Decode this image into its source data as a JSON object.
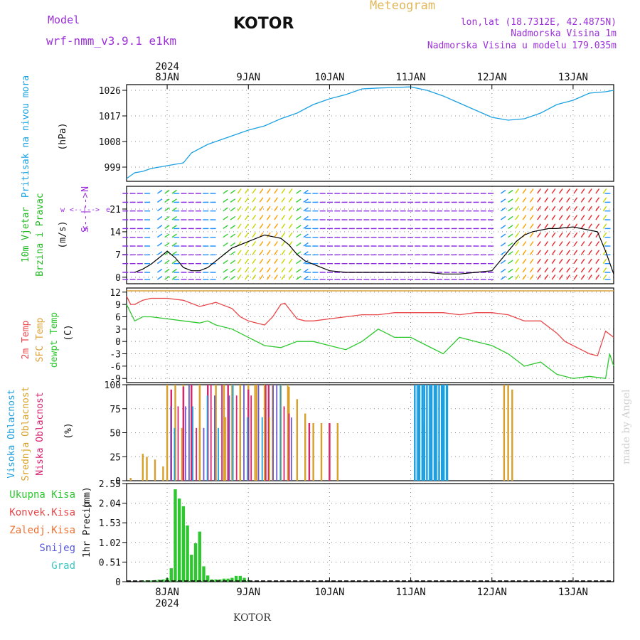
{
  "header": {
    "model_label": "Model",
    "model_name": "wrf-nmm_v3.9.1 e1km",
    "station": "KOTOR",
    "product": "Meteogram",
    "lonlat": "lon,lat (18.7312E, 42.4875N)",
    "elevation": "Nadmorska Visina 1m",
    "model_elevation": "Nadmorska Visina u modelu 179.035m",
    "footer_station": "KOTOR",
    "credit": "made by Angel"
  },
  "time_axis": {
    "year": "2024",
    "day_labels": [
      "8JAN",
      "9JAN",
      "10JAN",
      "11JAN",
      "12JAN",
      "13JAN"
    ]
  },
  "colors": {
    "pressure": "#1ba1e2",
    "temp2m": "#e8474a",
    "sfc_temp": "#dba23a",
    "dewpoint": "#2fc72f",
    "wind_label": "#22b822",
    "precip": "#2fc72f",
    "cloud_high": "#1e9fe0",
    "cloud_mid": "#d8a02a",
    "cloud_low": "#d6246e",
    "cloud_alt": "#6a5acd",
    "violet": "#9b30d9",
    "title_gold": "#e0b85c"
  },
  "chart_data": [
    {
      "type": "line",
      "panel": "pressure",
      "ylabel_parts": [
        "Pritisak na nivou mora",
        "(hPa)"
      ],
      "yticks": [
        999,
        1008,
        1017,
        1026
      ],
      "ylim": [
        994,
        1028
      ],
      "grid": true,
      "series": [
        {
          "x": [
            -0.5,
            -0.45,
            -0.4,
            -0.3,
            -0.2,
            -0.1,
            0,
            0.1,
            0.2,
            0.3,
            0.5,
            0.7,
            0.9,
            1,
            1.2,
            1.4,
            1.6,
            1.8,
            2,
            2.2,
            2.4,
            2.6,
            2.8,
            3,
            3.2,
            3.4,
            3.6,
            3.8,
            4,
            4.2,
            4.4,
            4.6,
            4.8,
            5,
            5.2,
            5.4,
            5.5
          ],
          "y": [
            995,
            996,
            997,
            997.5,
            998.5,
            999,
            999.5,
            1000,
            1000.5,
            1004,
            1007,
            1009,
            1011,
            1012,
            1013.5,
            1016,
            1018,
            1021,
            1023,
            1024.5,
            1026.5,
            1026.8,
            1027,
            1027.2,
            1026,
            1024,
            1021.5,
            1019,
            1016.5,
            1015.5,
            1016,
            1018,
            1021,
            1022.5,
            1025,
            1025.5,
            1026
          ]
        }
      ]
    },
    {
      "type": "line",
      "panel": "wind",
      "ylabel_parts": [
        "10m Vjetar",
        "Brzina i Pravac",
        "(m/s)"
      ],
      "direction_key": [
        "w",
        "<--|-->",
        "e",
        "N",
        "<--|-->",
        "S"
      ],
      "yticks": [
        0,
        7,
        14,
        21
      ],
      "ylim": [
        -2,
        28
      ],
      "grid": true,
      "series": [
        {
          "x": [
            -0.4,
            -0.3,
            -0.2,
            -0.1,
            0,
            0.1,
            0.2,
            0.3,
            0.4,
            0.5,
            0.6,
            0.8,
            1,
            1.2,
            1.3,
            1.4,
            1.5,
            1.6,
            1.7,
            1.8,
            1.9,
            2,
            2.2,
            2.4,
            2.6,
            2.8,
            3,
            3.2,
            3.4,
            3.6,
            3.8,
            4,
            4.1,
            4.2,
            4.3,
            4.4,
            4.5,
            4.6,
            4.7,
            4.8,
            5,
            5.1,
            5.2,
            5.3,
            5.4,
            5.5
          ],
          "y": [
            1.5,
            2.5,
            4,
            6,
            8,
            6,
            3,
            2,
            2,
            3,
            5,
            9,
            11,
            13,
            12.5,
            12,
            10,
            7,
            5,
            4,
            3,
            2,
            1.5,
            1.5,
            1.5,
            1.5,
            1.5,
            1.5,
            1,
            1,
            1.5,
            2,
            5,
            8,
            11,
            13,
            14,
            14.5,
            15,
            15,
            15.5,
            15,
            14.5,
            14,
            8,
            1
          ]
        }
      ]
    },
    {
      "type": "line",
      "panel": "temperature",
      "ylabel_parts": [
        "2m Temp",
        "SFC Temp",
        "dewpt Temp",
        "(C)"
      ],
      "yticks": [
        -9,
        -6,
        -3,
        0,
        3,
        6,
        9,
        12
      ],
      "ylim": [
        -10,
        13
      ],
      "grid": true,
      "series": [
        {
          "name": "2m Temp",
          "x": [
            -0.5,
            -0.45,
            -0.4,
            -0.3,
            -0.2,
            0,
            0.2,
            0.4,
            0.5,
            0.6,
            0.8,
            0.9,
            1,
            1.1,
            1.2,
            1.3,
            1.4,
            1.45,
            1.5,
            1.6,
            1.7,
            1.8,
            2,
            2.2,
            2.4,
            2.6,
            2.8,
            3,
            3.2,
            3.4,
            3.6,
            3.8,
            4,
            4.2,
            4.4,
            4.6,
            4.8,
            4.9,
            5,
            5.1,
            5.2,
            5.3,
            5.4,
            5.5
          ],
          "y": [
            11,
            9,
            9,
            10,
            10.5,
            10.5,
            10,
            8.5,
            9,
            9.5,
            8,
            6,
            5,
            4.5,
            4,
            6,
            9,
            9.3,
            8,
            5.5,
            5,
            5,
            5.5,
            6,
            6.5,
            6.5,
            7,
            7,
            7,
            7,
            6.5,
            7,
            7,
            6.5,
            5,
            5,
            2,
            0,
            -1,
            -2,
            -3,
            -3.5,
            2.5,
            1
          ]
        },
        {
          "name": "SFC Temp",
          "x": [
            -0.5,
            5.5
          ],
          "y": [
            12.3,
            12.3
          ]
        },
        {
          "name": "dewpt Temp",
          "x": [
            -0.5,
            -0.45,
            -0.4,
            -0.3,
            -0.2,
            0,
            0.2,
            0.4,
            0.5,
            0.6,
            0.8,
            1,
            1.2,
            1.4,
            1.6,
            1.8,
            2,
            2.2,
            2.4,
            2.6,
            2.8,
            3,
            3.2,
            3.4,
            3.6,
            3.8,
            4,
            4.2,
            4.4,
            4.6,
            4.8,
            5,
            5.2,
            5.4,
            5.45,
            5.5
          ],
          "y": [
            9,
            7,
            5,
            6,
            6,
            5.5,
            5,
            4.5,
            5,
            4,
            3,
            1,
            -1,
            -1.5,
            0,
            0,
            -1,
            -2,
            0,
            3,
            1,
            1,
            -1,
            -3,
            1,
            0,
            -1,
            -3,
            -6,
            -5,
            -8,
            -9,
            -8.5,
            -9,
            -3,
            -6
          ]
        }
      ]
    },
    {
      "type": "bar",
      "panel": "clouds",
      "ylabel_parts": [
        "Visoka Oblacnost",
        "Srednja Oblacnost",
        "Niska Oblacnost",
        "(%)"
      ],
      "yticks": [
        0,
        25,
        50,
        75,
        100
      ],
      "ylim": [
        0,
        100
      ],
      "grid": true,
      "series": [
        {
          "name": "Srednja Oblacnost",
          "x": [
            -0.45,
            -0.3,
            -0.25,
            -0.15,
            -0.05,
            0,
            0.1,
            0.2,
            0.3,
            0.4,
            0.5,
            0.6,
            0.7,
            0.8,
            0.9,
            1,
            1.1,
            1.2,
            1.3,
            1.4,
            1.5,
            1.6,
            1.7,
            1.8,
            1.9,
            2,
            2.1,
            3.05,
            3.15,
            3.25,
            3.35,
            3.45,
            4.15,
            4.2,
            4.25
          ],
          "y": [
            3,
            28,
            25,
            22,
            15,
            100,
            100,
            100,
            100,
            100,
            100,
            100,
            100,
            100,
            100,
            100,
            100,
            100,
            100,
            100,
            98,
            85,
            70,
            60,
            60,
            60,
            60,
            20,
            60,
            30,
            20,
            30,
            100,
            100,
            95
          ]
        },
        {
          "name": "Visoka Oblacnost",
          "x": [
            3.05,
            3.1,
            3.15,
            3.2,
            3.25,
            3.3,
            3.35,
            3.4,
            3.45
          ],
          "y": [
            100,
            100,
            100,
            100,
            100,
            100,
            100,
            100,
            100
          ]
        },
        {
          "name": "Niska Oblacnost",
          "x": [
            0.05,
            0.2,
            0.3,
            0.5,
            0.75,
            1,
            1.25,
            1.5,
            1.75,
            2
          ],
          "y": [
            95,
            98,
            100,
            100,
            100,
            95,
            100,
            70,
            60,
            60
          ]
        }
      ]
    },
    {
      "type": "bar",
      "panel": "precipitation",
      "ylabel_parts": [
        "1hr Precip",
        "(mm)"
      ],
      "legend": [
        "Ukupna Kisa",
        "Konvek.Kisa",
        "Zaledj.Kisa",
        "Snijeg",
        "Grad"
      ],
      "yticks": [
        0,
        0.51,
        1.02,
        1.53,
        2.04,
        2.55
      ],
      "ylim": [
        0,
        2.55
      ],
      "grid": true,
      "series": [
        {
          "name": "Ukupna Kisa",
          "x": [
            -0.3,
            -0.25,
            -0.2,
            -0.15,
            -0.1,
            -0.05,
            0,
            0.05,
            0.1,
            0.15,
            0.2,
            0.25,
            0.3,
            0.35,
            0.4,
            0.45,
            0.5,
            0.55,
            0.6,
            0.65,
            0.7,
            0.75,
            0.8,
            0.85,
            0.9,
            0.95,
            1
          ],
          "y": [
            0.03,
            0.03,
            0.03,
            0.04,
            0.05,
            0.06,
            0.09,
            0.35,
            2.4,
            2.16,
            1.96,
            1.46,
            0.7,
            1.0,
            1.3,
            0.4,
            0.16,
            0.06,
            0.06,
            0.06,
            0.08,
            0.08,
            0.1,
            0.15,
            0.15,
            0.1,
            0.04
          ]
        }
      ]
    }
  ]
}
